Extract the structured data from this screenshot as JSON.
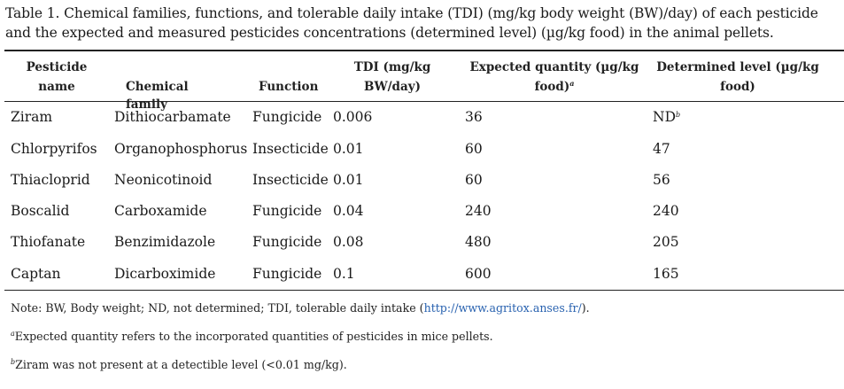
{
  "caption": "Table 1. Chemical families, functions, and tolerable daily intake (TDI) (mg/kg body weight (BW)/day) of each pesticide and the expected and measured pesticides concentrations (determined level) (µg/kg food) in the animal pellets.",
  "headers": {
    "pesticide_line1": "Pesticide",
    "pesticide_line2": "name",
    "family": "Chemical family",
    "function": "Function",
    "tdi_line1": "TDI (mg/kg",
    "tdi_line2": "BW/day)",
    "expected_line1": "Expected quantity (µg/kg",
    "expected_line2": "food)",
    "expected_sup": "a",
    "determined_line1": "Determined level (µg/kg",
    "determined_line2": "food)"
  },
  "rows": [
    {
      "name": "Ziram",
      "family": "Dithiocarbamate",
      "function": "Fungicide",
      "tdi": "0.006",
      "expected": "36",
      "determined": "ND",
      "determined_sup": "b"
    },
    {
      "name": "Chlorpyrifos",
      "family": "Organophosphorus",
      "function": "Insecticide",
      "tdi": "0.01",
      "expected": "60",
      "determined": "47",
      "determined_sup": ""
    },
    {
      "name": "Thiacloprid",
      "family": "Neonicotinoid",
      "function": "Insecticide",
      "tdi": "0.01",
      "expected": "60",
      "determined": "56",
      "determined_sup": ""
    },
    {
      "name": "Boscalid",
      "family": "Carboxamide",
      "function": "Fungicide",
      "tdi": "0.04",
      "expected": "240",
      "determined": "240",
      "determined_sup": ""
    },
    {
      "name": "Thiofanate",
      "family": "Benzimidazole",
      "function": "Fungicide",
      "tdi": "0.08",
      "expected": "480",
      "determined": "205",
      "determined_sup": ""
    },
    {
      "name": "Captan",
      "family": "Dicarboximide",
      "function": "Fungicide",
      "tdi": "0.1",
      "expected": "600",
      "determined": "165",
      "determined_sup": ""
    }
  ],
  "notes": {
    "note1_prefix": "Note: BW, Body weight; ND, not determined; TDI, tolerable daily intake (",
    "note1_link": "http://www.agritox.anses.fr/",
    "note1_suffix": ").",
    "note2_sup": "a",
    "note2_text": "Expected quantity refers to the incorporated quantities of pesticides in mice pellets.",
    "note3_sup": "b",
    "note3_text": "Ziram was not present at a detectible level (<0.01 mg/kg)."
  },
  "colors": {
    "link": "#2a63b0",
    "rule": "#222222"
  }
}
